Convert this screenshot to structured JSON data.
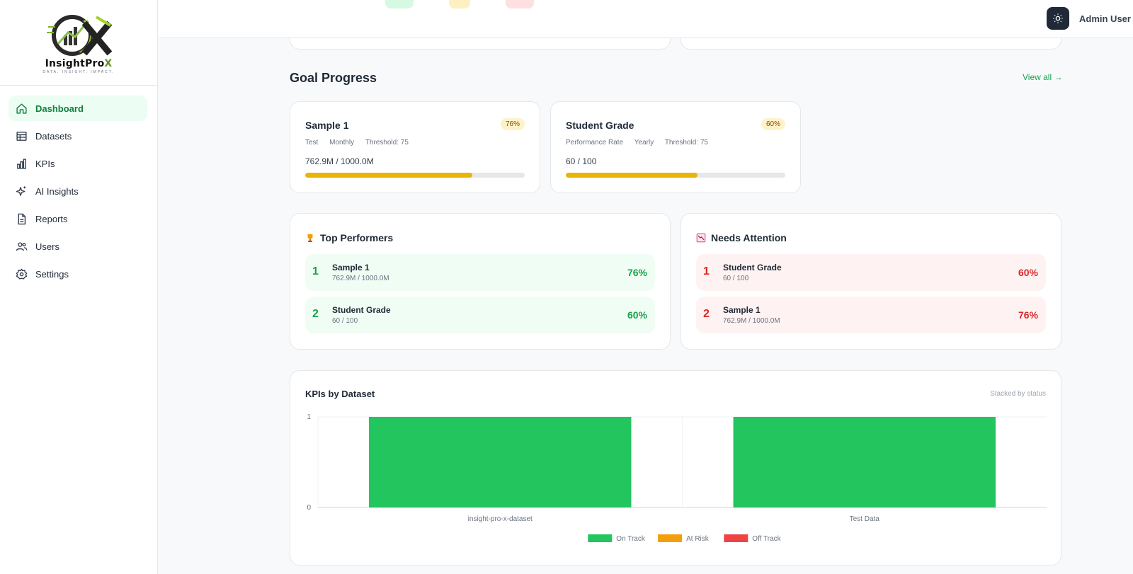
{
  "sidebar": {
    "brand": {
      "name_main": "InsightPro",
      "name_accent": "X",
      "tagline": "DATA. INSIGHT. IMPACT."
    },
    "items": [
      {
        "label": "Dashboard",
        "icon": "home-icon",
        "active": true
      },
      {
        "label": "Datasets",
        "icon": "table-icon",
        "active": false
      },
      {
        "label": "KPIs",
        "icon": "bar-chart-icon",
        "active": false
      },
      {
        "label": "AI Insights",
        "icon": "sparkles-icon",
        "active": false
      },
      {
        "label": "Reports",
        "icon": "file-icon",
        "active": false
      },
      {
        "label": "Users",
        "icon": "users-icon",
        "active": false
      },
      {
        "label": "Settings",
        "icon": "gear-icon",
        "active": false
      }
    ]
  },
  "header": {
    "user_name": "Admin User",
    "theme_icon": "sun-icon"
  },
  "goal_progress": {
    "title": "Goal Progress",
    "view_all": "View all →",
    "goals": [
      {
        "name": "Sample 1",
        "badge": "76%",
        "meta": [
          "Test",
          "Monthly",
          "Threshold: 75"
        ],
        "value": "762.9M / 1000.0M",
        "progress": 0.76
      },
      {
        "name": "Student Grade",
        "badge": "60%",
        "meta": [
          "Performance Rate",
          "Yearly",
          "Threshold: 75"
        ],
        "value": "60 / 100",
        "progress": 0.6
      }
    ]
  },
  "top_performers": {
    "title": "Top Performers",
    "icon": "trophy-icon",
    "rows": [
      {
        "rank": "1",
        "name": "Sample 1",
        "sub": "762.9M / 1000.0M",
        "pct": "76%"
      },
      {
        "rank": "2",
        "name": "Student Grade",
        "sub": "60 / 100",
        "pct": "60%"
      }
    ]
  },
  "needs_attention": {
    "title": "Needs Attention",
    "icon": "chart-down-icon",
    "rows": [
      {
        "rank": "1",
        "name": "Student Grade",
        "sub": "60 / 100",
        "pct": "60%"
      },
      {
        "rank": "2",
        "name": "Sample 1",
        "sub": "762.9M / 1000.0M",
        "pct": "76%"
      }
    ]
  },
  "chart_data": {
    "type": "bar",
    "title": "KPIs by Dataset",
    "subtitle": "Stacked by status",
    "categories": [
      "insight-pro-x-dataset",
      "Test Data"
    ],
    "series": [
      {
        "name": "On Track",
        "color": "#22c55e",
        "values": [
          1,
          1
        ]
      },
      {
        "name": "At Risk",
        "color": "#f59e0b",
        "values": [
          0,
          0
        ]
      },
      {
        "name": "Off Track",
        "color": "#ef4444",
        "values": [
          0,
          0
        ]
      }
    ],
    "ylim": [
      0,
      1
    ],
    "yticks": [
      "0",
      "1"
    ],
    "stacked": true,
    "grid": true,
    "legend": "bottom"
  }
}
